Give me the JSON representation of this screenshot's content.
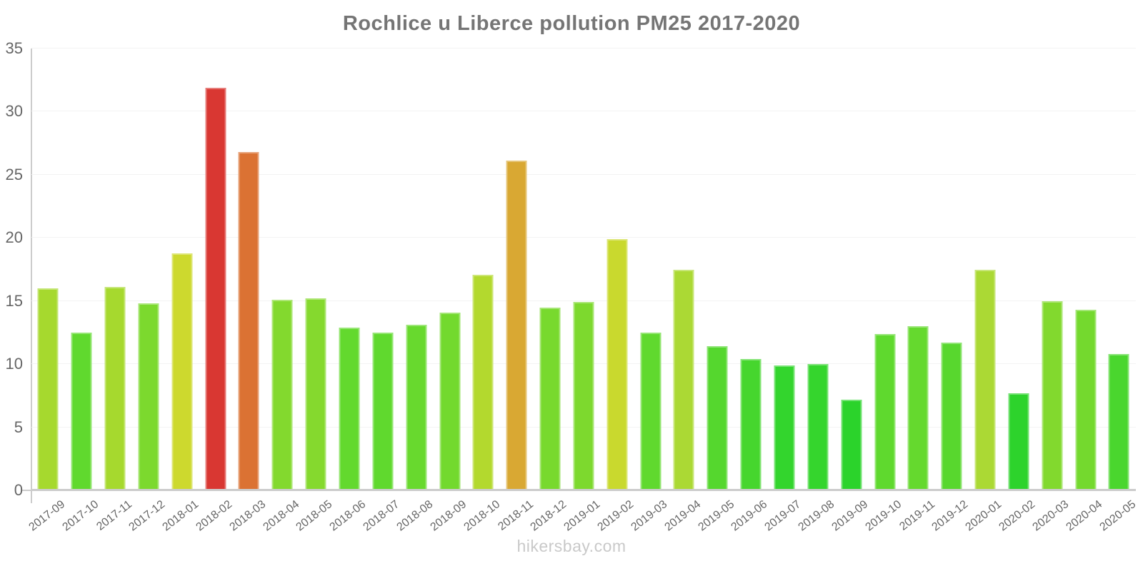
{
  "title": "Rochlice u Liberce pollution PM25 2017-2020",
  "watermark": "hikersbay.com",
  "colors": {
    "title_text": "#757575",
    "axis_labels": "#666666",
    "axis_line": "#cccccc",
    "gridline": "#f3f3f3",
    "watermark": "#c9c9c9",
    "background": "#ffffff"
  },
  "chart_data": {
    "type": "bar",
    "title": "Rochlice u Liberce pollution PM25 2017-2020",
    "xlabel": "",
    "ylabel": "",
    "ylim": [
      0,
      35
    ],
    "yticks": [
      0,
      5,
      10,
      15,
      20,
      25,
      30,
      35
    ],
    "grid": "faint-horizontal",
    "legend": "none",
    "categories": [
      "2017-09",
      "2017-10",
      "2017-11",
      "2017-12",
      "2018-01",
      "2018-02",
      "2018-03",
      "2018-04",
      "2018-05",
      "2018-06",
      "2018-07",
      "2018-08",
      "2018-09",
      "2018-10",
      "2018-11",
      "2018-12",
      "2019-01",
      "2019-02",
      "2019-03",
      "2019-04",
      "2019-05",
      "2019-06",
      "2019-07",
      "2019-08",
      "2019-09",
      "2019-10",
      "2019-11",
      "2019-12",
      "2020-01",
      "2020-02",
      "2020-03",
      "2020-04",
      "2020-05"
    ],
    "values": [
      16.0,
      12.5,
      16.1,
      14.8,
      18.8,
      31.9,
      26.8,
      15.1,
      15.2,
      12.9,
      12.5,
      13.1,
      14.1,
      17.1,
      26.1,
      14.5,
      14.9,
      19.9,
      12.5,
      17.5,
      11.4,
      10.4,
      9.9,
      10.0,
      7.2,
      12.4,
      13.0,
      11.7,
      17.5,
      7.7,
      15.0,
      14.3,
      10.8
    ],
    "bar_colors": [
      "#a6d92e",
      "#60d92e",
      "#a6d92e",
      "#7cd92e",
      "#cdd92e",
      "#d93732",
      "#db7233",
      "#83d92e",
      "#85d92e",
      "#63d92e",
      "#60d92e",
      "#68d92e",
      "#73d92e",
      "#b3d92e",
      "#d9a833",
      "#78d92e",
      "#7dd92e",
      "#c9d92e",
      "#60d92e",
      "#abd934",
      "#55d72e",
      "#46d62e",
      "#33d52d",
      "#35d52d",
      "#2bd32b",
      "#5fd92e",
      "#65d92e",
      "#58d72e",
      "#abd934",
      "#2dd32c",
      "#82d92e",
      "#74d92e",
      "#4ad62e"
    ]
  }
}
